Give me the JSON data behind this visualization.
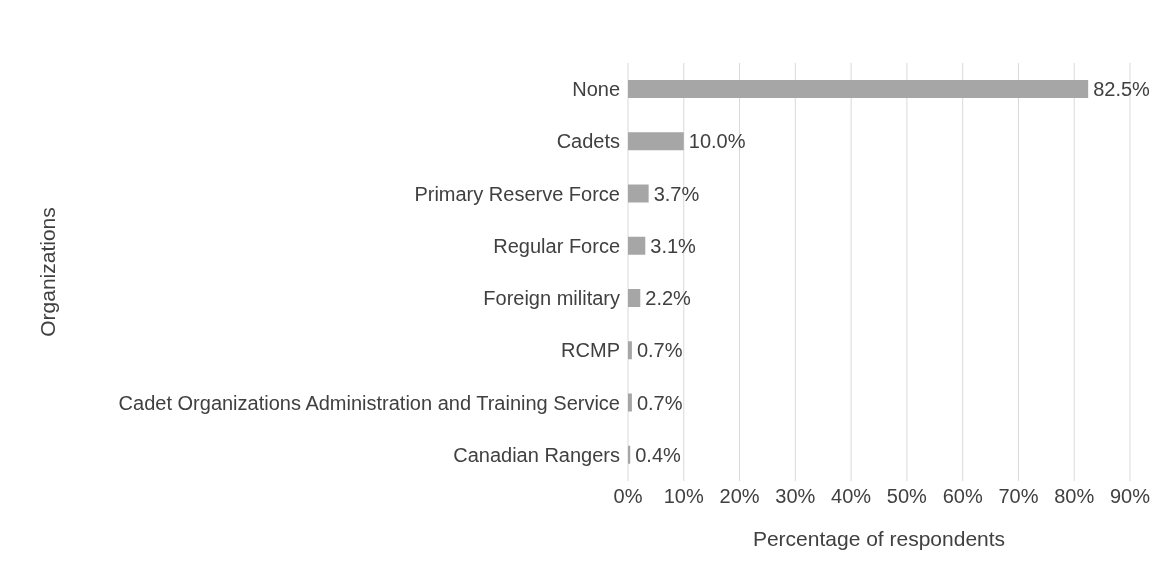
{
  "chart_data": {
    "type": "bar",
    "orientation": "horizontal",
    "xlabel": "Percentage of respondents",
    "ylabel": "Organizations",
    "categories": [
      "None",
      "Cadets",
      "Primary  Reserve Force",
      "Regular Force",
      "Foreign military",
      "RCMP",
      "Cadet Organizations Administration and Training Service",
      "Canadian Rangers"
    ],
    "values": [
      82.5,
      10.0,
      3.7,
      3.1,
      2.2,
      0.7,
      0.7,
      0.4
    ],
    "value_labels": [
      "82.5%",
      "10.0%",
      "3.7%",
      "3.1%",
      "2.2%",
      "0.7%",
      "0.7%",
      "0.4%"
    ],
    "color": "#a6a6a6",
    "xlim": [
      0,
      90
    ],
    "xticks": [
      {
        "value": 0,
        "label": "0%"
      },
      {
        "value": 10,
        "label": "10%"
      },
      {
        "value": 20,
        "label": "20%"
      },
      {
        "value": 30,
        "label": "30%"
      },
      {
        "value": 40,
        "label": "40%"
      },
      {
        "value": 50,
        "label": "50%"
      },
      {
        "value": 60,
        "label": "60%"
      },
      {
        "value": 70,
        "label": "70%"
      },
      {
        "value": 80,
        "label": "80%"
      },
      {
        "value": 90,
        "label": "90%"
      }
    ],
    "grid": "x"
  }
}
